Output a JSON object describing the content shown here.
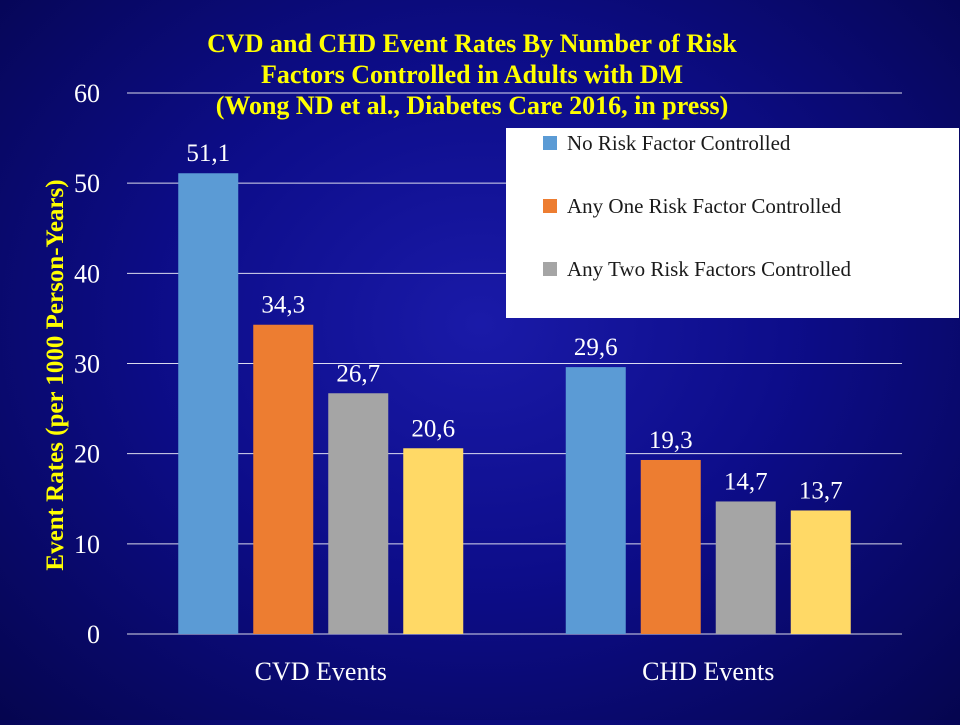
{
  "chart_data": {
    "type": "bar",
    "title_lines": [
      "CVD and CHD Event Rates By Number of Risk",
      "Factors Controlled in Adults with DM",
      "(Wong ND et al., Diabetes Care 2016, in press)"
    ],
    "ylabel": "Event Rates (per 1000 Person-Years)",
    "xlabel": "",
    "ylim": [
      0,
      60
    ],
    "yticks": [
      0,
      10,
      20,
      30,
      40,
      50,
      60
    ],
    "grid": true,
    "legend_position": "top-right",
    "categories": [
      "CVD Events",
      "CHD Events"
    ],
    "series": [
      {
        "name": "No Risk Factor Controlled",
        "color": "#5b9bd5",
        "values": [
          51.1,
          29.6
        ],
        "labels": [
          "51,1",
          "29,6"
        ]
      },
      {
        "name": "Any One Risk Factor Controlled",
        "color": "#ed7d31",
        "values": [
          34.3,
          19.3
        ],
        "labels": [
          "34,3",
          "19,3"
        ]
      },
      {
        "name": "Any Two Risk Factors Controlled",
        "color": "#a5a5a5",
        "values": [
          26.7,
          14.7
        ],
        "labels": [
          "26,7",
          "14,7"
        ]
      },
      {
        "name": "",
        "color": "#ffd966",
        "values": [
          20.6,
          13.7
        ],
        "labels": [
          "20,6",
          "13,7"
        ]
      }
    ],
    "colors": {
      "title": "#ffff00",
      "ylabel": "#ffff00",
      "tick_text": "#ffffff",
      "data_label": "#ffffff",
      "gridline": "#ffffff"
    }
  }
}
